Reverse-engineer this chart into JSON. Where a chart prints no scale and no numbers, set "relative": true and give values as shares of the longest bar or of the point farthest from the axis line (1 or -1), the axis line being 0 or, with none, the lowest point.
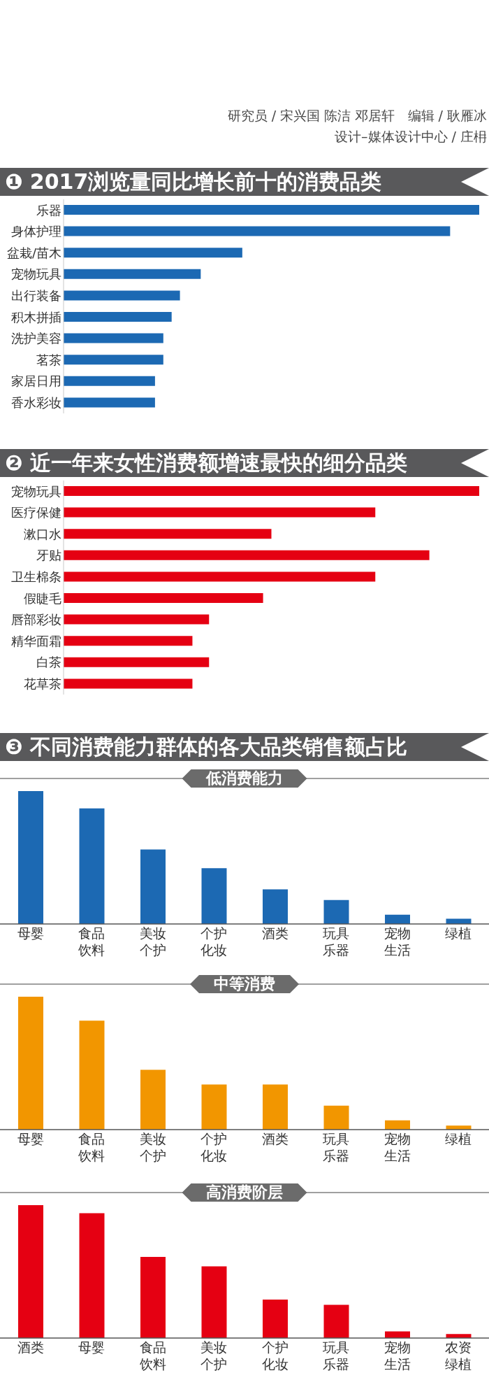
{
  "chart_data": [
    {
      "type": "bar",
      "orientation": "horizontal",
      "relative": true,
      "title": "❶ 2017浏览量同比增长前十的消费品类",
      "annotations": [
        "研究员 / 宋兴国 陈洁 邓居轩   编辑 / 耿雁冰",
        "设计–媒体设计中心 / 庄枏"
      ],
      "categories": [
        "乐器",
        "身体护理",
        "盆栽/苗木",
        "宠物玩具",
        "出行装备",
        "积木拼插",
        "洗护美容",
        "茗茶",
        "家居日用",
        "香水彩妆"
      ],
      "values": [
        1,
        0.93,
        0.43,
        0.33,
        0.28,
        0.26,
        0.24,
        0.24,
        0.22,
        0.22
      ],
      "color": "#1c69b3"
    },
    {
      "type": "bar",
      "orientation": "horizontal",
      "relative": true,
      "title": "❷ 近一年来女性消费额增速最快的细分品类",
      "categories": [
        "宠物玩具",
        "医疗保健",
        "漱口水",
        "牙贴",
        "卫生棉条",
        "假睫毛",
        "唇部彩妆",
        "精华面霜",
        "白茶",
        "花草茶"
      ],
      "values": [
        1,
        0.75,
        0.5,
        0.88,
        0.75,
        0.48,
        0.35,
        0.31,
        0.35,
        0.31
      ],
      "color": "#e50012"
    },
    {
      "type": "bar",
      "relative": true,
      "title": "❸ 不同消费能力群体的各大品类销售额占比",
      "subtitle": "低消费能力",
      "categories": [
        "母婴",
        "食品饮料",
        "美妆个护",
        "个护化妆",
        "酒类",
        "玩具乐器",
        "宠物生活",
        "绿植"
      ],
      "values": [
        1,
        0.87,
        0.56,
        0.42,
        0.26,
        0.18,
        0.07,
        0.04
      ],
      "color": "#1c69b3"
    },
    {
      "type": "bar",
      "relative": true,
      "subtitle": "中等消费",
      "categories": [
        "母婴",
        "食品饮料",
        "美妆个护",
        "个护化妆",
        "酒类",
        "玩具乐器",
        "宠物生活",
        "绿植"
      ],
      "values": [
        1,
        0.82,
        0.45,
        0.34,
        0.34,
        0.18,
        0.07,
        0.03
      ],
      "color": "#f29600"
    },
    {
      "type": "bar",
      "relative": true,
      "subtitle": "高消费阶层",
      "categories": [
        "酒类",
        "母婴",
        "食品饮料",
        "美妆个护",
        "个护化妆",
        "玩具乐器",
        "宠物生活",
        "农资绿植"
      ],
      "values": [
        1,
        0.94,
        0.61,
        0.54,
        0.29,
        0.25,
        0.05,
        0.03
      ],
      "color": "#e50012"
    }
  ]
}
